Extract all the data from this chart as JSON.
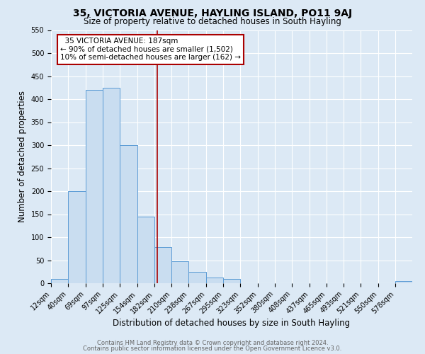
{
  "title": "35, VICTORIA AVENUE, HAYLING ISLAND, PO11 9AJ",
  "subtitle": "Size of property relative to detached houses in South Hayling",
  "xlabel": "Distribution of detached houses by size in South Hayling",
  "ylabel": "Number of detached properties",
  "bin_labels": [
    "12sqm",
    "40sqm",
    "69sqm",
    "97sqm",
    "125sqm",
    "154sqm",
    "182sqm",
    "210sqm",
    "238sqm",
    "267sqm",
    "295sqm",
    "323sqm",
    "352sqm",
    "380sqm",
    "408sqm",
    "437sqm",
    "465sqm",
    "493sqm",
    "521sqm",
    "550sqm",
    "578sqm"
  ],
  "bin_edges": [
    12,
    40,
    69,
    97,
    125,
    154,
    182,
    210,
    238,
    267,
    295,
    323,
    352,
    380,
    408,
    437,
    465,
    493,
    521,
    550,
    578
  ],
  "bar_heights": [
    10,
    200,
    420,
    425,
    300,
    145,
    78,
    48,
    25,
    13,
    10,
    0,
    0,
    0,
    0,
    0,
    0,
    0,
    0,
    0,
    4
  ],
  "bar_color": "#c9ddf0",
  "bar_edge_color": "#5b9bd5",
  "vline_x": 187,
  "vline_color": "#aa0000",
  "ylim": [
    0,
    550
  ],
  "annotation_title": "35 VICTORIA AVENUE: 187sqm",
  "annotation_line1": "← 90% of detached houses are smaller (1,502)",
  "annotation_line2": "10% of semi-detached houses are larger (162) →",
  "annotation_box_color": "#ffffff",
  "annotation_box_edge": "#aa0000",
  "footer_line1": "Contains HM Land Registry data © Crown copyright and database right 2024.",
  "footer_line2": "Contains public sector information licensed under the Open Government Licence v3.0.",
  "background_color": "#dce9f5",
  "plot_bg_color": "#dce9f5",
  "grid_color": "#ffffff",
  "title_fontsize": 10,
  "subtitle_fontsize": 8.5,
  "axis_label_fontsize": 8.5,
  "tick_fontsize": 7,
  "annotation_fontsize": 7.5,
  "footer_fontsize": 6
}
